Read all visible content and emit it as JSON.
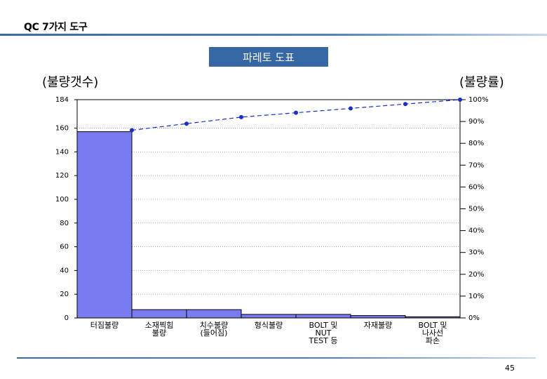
{
  "header": {
    "title": "QC 7가지 도구"
  },
  "page_number": "45",
  "chart_data": {
    "type": "bar",
    "title": "파레토 도표",
    "ylabel": "(불량갯수)",
    "y2label": "(불량률)",
    "categories": [
      [
        "터짐불량"
      ],
      [
        "소재찍힘",
        "불량"
      ],
      [
        "치수불량",
        "(들어짐)"
      ],
      [
        "형식불량"
      ],
      [
        "BOLT 및",
        "NUT",
        "TEST 등"
      ],
      [
        "자재불량"
      ],
      [
        "BOLT 및",
        "나사선",
        "파손"
      ]
    ],
    "series": [
      {
        "type": "bar",
        "values": [
          157,
          7,
          7,
          3,
          3,
          2,
          1
        ],
        "color": "#7b7bf0"
      },
      {
        "type": "line",
        "values": [
          86,
          89,
          92,
          94,
          96,
          98,
          100
        ],
        "color": "#1a2fc8",
        "axis": "right"
      }
    ],
    "ylim": [
      0,
      184
    ],
    "yticks": [
      0,
      20,
      40,
      60,
      80,
      100,
      120,
      140,
      160,
      184
    ],
    "y2lim": [
      0,
      100
    ],
    "y2ticks": [
      0,
      10,
      20,
      30,
      40,
      50,
      60,
      70,
      80,
      90,
      100
    ],
    "grid": true
  }
}
